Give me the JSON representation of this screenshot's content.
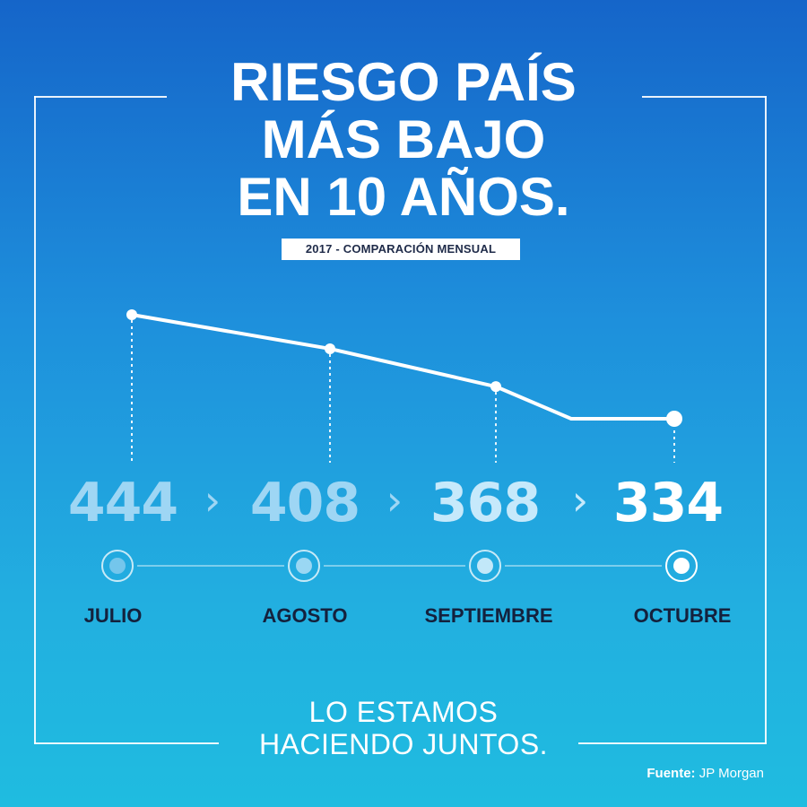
{
  "title_lines": [
    "RIESGO PAÍS",
    "MÁS BAJO",
    "EN 10 AÑOS."
  ],
  "subtitle": "2017 - COMPARACIÓN MENSUAL",
  "slogan_lines": [
    "LO ESTAMOS",
    "HACIENDO JUNTOS."
  ],
  "source": {
    "label": "Fuente:",
    "value": "JP Morgan"
  },
  "colors": {
    "background_top": "#1565c9",
    "background_bottom": "#1fbce0",
    "month_text": "#14213d",
    "value_faded": "#9ed6f4",
    "value_mid": "#c6e9fb",
    "value_current": "#ffffff"
  },
  "chart_data": {
    "type": "line",
    "title": "RIESGO PAÍS MÁS BAJO EN 10 AÑOS.",
    "subtitle": "2017 - COMPARACIÓN MENSUAL",
    "categories": [
      "JULIO",
      "AGOSTO",
      "SEPTIEMBRE",
      "OCTUBRE"
    ],
    "values": [
      444,
      408,
      368,
      334
    ],
    "value_labels": [
      "444",
      "408",
      "368",
      "334"
    ],
    "separator": "›",
    "grid": false
  }
}
